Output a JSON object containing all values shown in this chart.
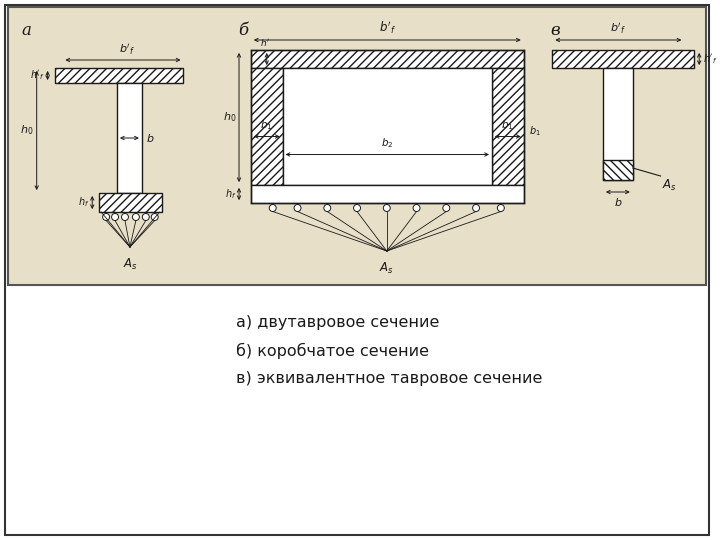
{
  "bg_color": "#e8dfc8",
  "outer_bg": "#ffffff",
  "line_color": "#1a1a1a",
  "hatch_color": "#1a1a1a",
  "title_a": "a",
  "title_b": "б",
  "title_v": "в",
  "caption_lines": [
    "а) двутавровое сечение",
    "б) коробчатое сечение",
    "в) эквивалентное тавровое сечение"
  ],
  "caption_fontsize": 11.5
}
